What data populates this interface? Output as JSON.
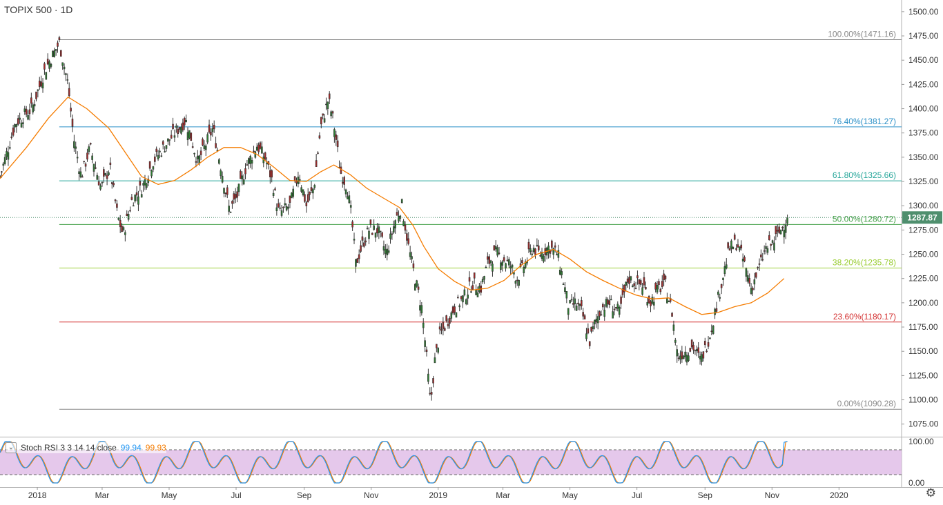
{
  "header": {
    "title": "TOPIX 500 · 1D"
  },
  "colors": {
    "up": "#26a69a",
    "down": "#b71c1c",
    "candle_up": "#2e7d32",
    "candle_down": "#a52a2a",
    "ma": "#f57c00",
    "stoch_k": "#2196f3",
    "stoch_d": "#f57c00",
    "stoch_band": "#e1bee7",
    "last_price_bg": "#4f8f6e"
  },
  "price_axis": {
    "min": 1062,
    "max": 1512,
    "ticks": [
      1075,
      1100,
      1125,
      1150,
      1175,
      1200,
      1225,
      1250,
      1275,
      1300,
      1325,
      1350,
      1375,
      1400,
      1425,
      1450,
      1475,
      1500
    ]
  },
  "time_axis": {
    "labels": [
      {
        "label": "2018",
        "day": 0
      },
      {
        "label": "Mar",
        "day": 59
      },
      {
        "label": "May",
        "day": 120
      },
      {
        "label": "Jul",
        "day": 181
      },
      {
        "label": "Sep",
        "day": 243
      },
      {
        "label": "Nov",
        "day": 304
      },
      {
        "label": "2019",
        "day": 365
      },
      {
        "label": "Mar",
        "day": 424
      },
      {
        "label": "May",
        "day": 485
      },
      {
        "label": "Jul",
        "day": 546
      },
      {
        "label": "Sep",
        "day": 608
      },
      {
        "label": "Nov",
        "day": 669
      },
      {
        "label": "2020",
        "day": 730
      }
    ],
    "start_day": -34,
    "end_day": 787
  },
  "last_price": {
    "label": "1287.87",
    "value": 1287.87
  },
  "fib_levels": [
    {
      "label": "100.00%(1471.16)",
      "value": 1471.16,
      "color": "#888888"
    },
    {
      "label": "76.40%(1381.27)",
      "value": 1381.27,
      "color": "#2a8fc7"
    },
    {
      "label": "61.80%(1325.66)",
      "value": 1325.66,
      "color": "#26a69a"
    },
    {
      "label": "50.00%(1280.72)",
      "value": 1280.72,
      "color": "#43a047"
    },
    {
      "label": "38.20%(1235.78)",
      "value": 1235.78,
      "color": "#9acd32"
    },
    {
      "label": "23.60%(1180.17)",
      "value": 1180.17,
      "color": "#d32f2f"
    },
    {
      "label": "0.00%(1090.28)",
      "value": 1090.28,
      "color": "#888888"
    }
  ],
  "fib_start_day": 20,
  "stoch": {
    "label": "Stoch RSI 3 3 14 14 close",
    "k_value": "99.94",
    "d_value": "99.93",
    "axis_ticks": [
      "100.00",
      "0.00"
    ],
    "upper": 80,
    "lower": 20
  },
  "chart_data": {
    "type": "candlestick",
    "title": "TOPIX 500 · 1D",
    "series_anchors": [
      {
        "day": -34,
        "close": 1330
      },
      {
        "day": -20,
        "close": 1385
      },
      {
        "day": -5,
        "close": 1400
      },
      {
        "day": 7,
        "close": 1440
      },
      {
        "day": 20,
        "close": 1468
      },
      {
        "day": 28,
        "close": 1425
      },
      {
        "day": 33,
        "close": 1370
      },
      {
        "day": 40,
        "close": 1330
      },
      {
        "day": 48,
        "close": 1360
      },
      {
        "day": 58,
        "close": 1318
      },
      {
        "day": 66,
        "close": 1340
      },
      {
        "day": 73,
        "close": 1290
      },
      {
        "day": 78,
        "close": 1270
      },
      {
        "day": 86,
        "close": 1305
      },
      {
        "day": 96,
        "close": 1320
      },
      {
        "day": 105,
        "close": 1345
      },
      {
        "day": 115,
        "close": 1360
      },
      {
        "day": 125,
        "close": 1375
      },
      {
        "day": 135,
        "close": 1388
      },
      {
        "day": 140,
        "close": 1370
      },
      {
        "day": 146,
        "close": 1345
      },
      {
        "day": 153,
        "close": 1362
      },
      {
        "day": 160,
        "close": 1380
      },
      {
        "day": 169,
        "close": 1330
      },
      {
        "day": 175,
        "close": 1295
      },
      {
        "day": 182,
        "close": 1310
      },
      {
        "day": 190,
        "close": 1340
      },
      {
        "day": 200,
        "close": 1362
      },
      {
        "day": 208,
        "close": 1348
      },
      {
        "day": 214,
        "close": 1325
      },
      {
        "day": 220,
        "close": 1292
      },
      {
        "day": 230,
        "close": 1300
      },
      {
        "day": 238,
        "close": 1335
      },
      {
        "day": 245,
        "close": 1300
      },
      {
        "day": 252,
        "close": 1320
      },
      {
        "day": 258,
        "close": 1380
      },
      {
        "day": 265,
        "close": 1410
      },
      {
        "day": 270,
        "close": 1385
      },
      {
        "day": 276,
        "close": 1335
      },
      {
        "day": 282,
        "close": 1320
      },
      {
        "day": 286,
        "close": 1290
      },
      {
        "day": 290,
        "close": 1240
      },
      {
        "day": 296,
        "close": 1260
      },
      {
        "day": 302,
        "close": 1275
      },
      {
        "day": 310,
        "close": 1275
      },
      {
        "day": 318,
        "close": 1250
      },
      {
        "day": 326,
        "close": 1285
      },
      {
        "day": 332,
        "close": 1300
      },
      {
        "day": 338,
        "close": 1258
      },
      {
        "day": 344,
        "close": 1225
      },
      {
        "day": 350,
        "close": 1195
      },
      {
        "day": 354,
        "close": 1150
      },
      {
        "day": 358,
        "close": 1095
      },
      {
        "day": 362,
        "close": 1140
      },
      {
        "day": 366,
        "close": 1165
      },
      {
        "day": 373,
        "close": 1180
      },
      {
        "day": 380,
        "close": 1195
      },
      {
        "day": 388,
        "close": 1205
      },
      {
        "day": 396,
        "close": 1220
      },
      {
        "day": 404,
        "close": 1215
      },
      {
        "day": 410,
        "close": 1240
      },
      {
        "day": 418,
        "close": 1252
      },
      {
        "day": 424,
        "close": 1245
      },
      {
        "day": 430,
        "close": 1240
      },
      {
        "day": 437,
        "close": 1225
      },
      {
        "day": 444,
        "close": 1240
      },
      {
        "day": 451,
        "close": 1257
      },
      {
        "day": 458,
        "close": 1250
      },
      {
        "day": 466,
        "close": 1258
      },
      {
        "day": 474,
        "close": 1250
      },
      {
        "day": 479,
        "close": 1222
      },
      {
        "day": 484,
        "close": 1195
      },
      {
        "day": 490,
        "close": 1200
      },
      {
        "day": 496,
        "close": 1190
      },
      {
        "day": 503,
        "close": 1160
      },
      {
        "day": 508,
        "close": 1180
      },
      {
        "day": 514,
        "close": 1195
      },
      {
        "day": 521,
        "close": 1200
      },
      {
        "day": 530,
        "close": 1190
      },
      {
        "day": 538,
        "close": 1225
      },
      {
        "day": 545,
        "close": 1220
      },
      {
        "day": 552,
        "close": 1218
      },
      {
        "day": 558,
        "close": 1200
      },
      {
        "day": 566,
        "close": 1215
      },
      {
        "day": 572,
        "close": 1218
      },
      {
        "day": 578,
        "close": 1190
      },
      {
        "day": 583,
        "close": 1145
      },
      {
        "day": 590,
        "close": 1150
      },
      {
        "day": 597,
        "close": 1155
      },
      {
        "day": 604,
        "close": 1140
      },
      {
        "day": 612,
        "close": 1165
      },
      {
        "day": 618,
        "close": 1195
      },
      {
        "day": 624,
        "close": 1225
      },
      {
        "day": 630,
        "close": 1255
      },
      {
        "day": 637,
        "close": 1262
      },
      {
        "day": 644,
        "close": 1240
      },
      {
        "day": 650,
        "close": 1215
      },
      {
        "day": 657,
        "close": 1235
      },
      {
        "day": 663,
        "close": 1255
      },
      {
        "day": 670,
        "close": 1262
      },
      {
        "day": 677,
        "close": 1275
      },
      {
        "day": 683,
        "close": 1288
      }
    ],
    "candle_step_days": 1.5,
    "moving_average_anchors": [
      {
        "day": -34,
        "value": 1328
      },
      {
        "day": -10,
        "value": 1360
      },
      {
        "day": 10,
        "value": 1390
      },
      {
        "day": 28,
        "value": 1412
      },
      {
        "day": 45,
        "value": 1400
      },
      {
        "day": 65,
        "value": 1380
      },
      {
        "day": 80,
        "value": 1355
      },
      {
        "day": 95,
        "value": 1330
      },
      {
        "day": 110,
        "value": 1322
      },
      {
        "day": 125,
        "value": 1326
      },
      {
        "day": 140,
        "value": 1337
      },
      {
        "day": 155,
        "value": 1350
      },
      {
        "day": 170,
        "value": 1360
      },
      {
        "day": 185,
        "value": 1360
      },
      {
        "day": 200,
        "value": 1353
      },
      {
        "day": 215,
        "value": 1340
      },
      {
        "day": 230,
        "value": 1326
      },
      {
        "day": 245,
        "value": 1325
      },
      {
        "day": 258,
        "value": 1335
      },
      {
        "day": 270,
        "value": 1342
      },
      {
        "day": 285,
        "value": 1332
      },
      {
        "day": 300,
        "value": 1318
      },
      {
        "day": 315,
        "value": 1308
      },
      {
        "day": 330,
        "value": 1298
      },
      {
        "day": 342,
        "value": 1280
      },
      {
        "day": 352,
        "value": 1258
      },
      {
        "day": 365,
        "value": 1235
      },
      {
        "day": 380,
        "value": 1222
      },
      {
        "day": 395,
        "value": 1213
      },
      {
        "day": 410,
        "value": 1215
      },
      {
        "day": 425,
        "value": 1223
      },
      {
        "day": 440,
        "value": 1238
      },
      {
        "day": 455,
        "value": 1250
      },
      {
        "day": 470,
        "value": 1255
      },
      {
        "day": 485,
        "value": 1245
      },
      {
        "day": 500,
        "value": 1232
      },
      {
        "day": 515,
        "value": 1223
      },
      {
        "day": 530,
        "value": 1215
      },
      {
        "day": 545,
        "value": 1208
      },
      {
        "day": 560,
        "value": 1204
      },
      {
        "day": 575,
        "value": 1205
      },
      {
        "day": 590,
        "value": 1196
      },
      {
        "day": 605,
        "value": 1188
      },
      {
        "day": 620,
        "value": 1190
      },
      {
        "day": 635,
        "value": 1196
      },
      {
        "day": 650,
        "value": 1200
      },
      {
        "day": 665,
        "value": 1210
      },
      {
        "day": 680,
        "value": 1225
      }
    ]
  }
}
